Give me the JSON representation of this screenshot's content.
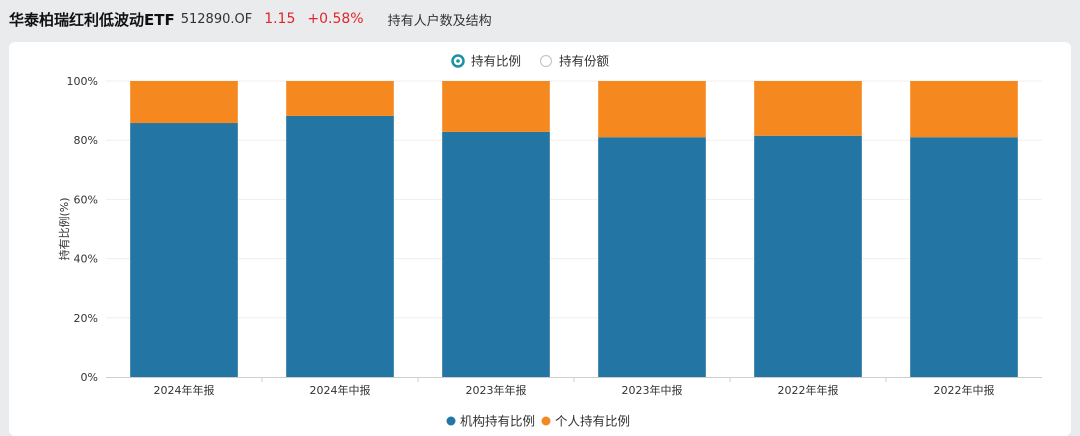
{
  "header": {
    "fund_name": "华泰柏瑞红利低波动ETF",
    "fund_code": "512890.OF",
    "price": "1.15",
    "change": "+0.58%",
    "section_title": "持有人户数及结构"
  },
  "toggle": {
    "options": [
      {
        "label": "持有比例",
        "selected": true
      },
      {
        "label": "持有份额",
        "selected": false
      }
    ]
  },
  "colors": {
    "institution": "#2376a4",
    "individual": "#f5891f",
    "toggle_active": "#1a8fa6",
    "price": "#e0262a"
  },
  "chart_data": {
    "type": "bar",
    "stacked": true,
    "ylabel": "持有比例(%)",
    "ylim": [
      0,
      100
    ],
    "yticks": [
      "0%",
      "20%",
      "40%",
      "60%",
      "80%",
      "100%"
    ],
    "grid": true,
    "legend_position": "bottom",
    "categories": [
      "2024年年报",
      "2024年中报",
      "2023年年报",
      "2023年中报",
      "2022年年报",
      "2022年中报"
    ],
    "series": [
      {
        "name": "机构持有比例",
        "values": [
          85.8,
          88.2,
          82.8,
          81.0,
          81.5,
          81.0
        ]
      },
      {
        "name": "个人持有比例",
        "values": [
          14.2,
          11.8,
          17.2,
          19.0,
          18.5,
          19.0
        ]
      }
    ]
  }
}
